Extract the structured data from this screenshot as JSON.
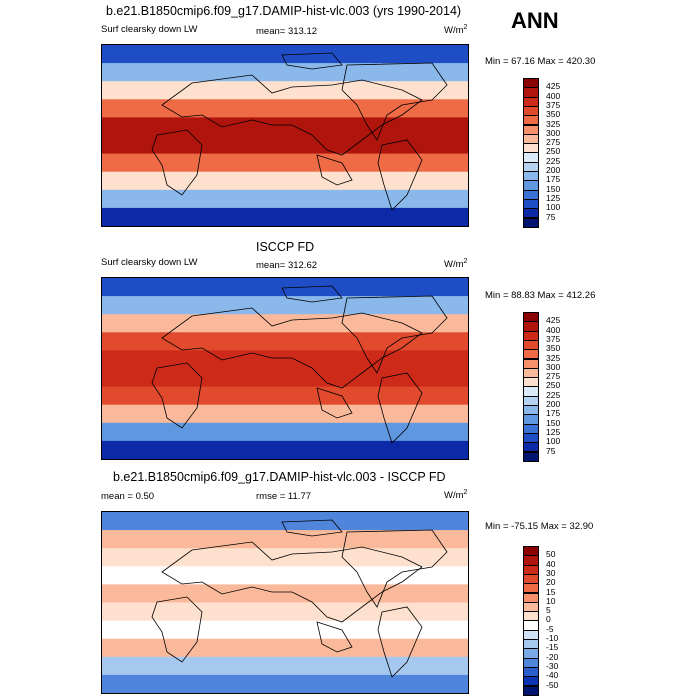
{
  "main_title": "b.e21.B1850cmip6.f09_g17.DAMIP-hist-vlc.003 (yrs 1990-2014)",
  "season": "ANN",
  "panels": [
    {
      "title": "",
      "field": "Surf clearsky down LW",
      "stat": "mean= 313.12",
      "units": "W/m",
      "units_sup": "2",
      "minmax": "Min =  67.16 Max = 420.30",
      "levels": [
        "425",
        "400",
        "375",
        "350",
        "325",
        "300",
        "275",
        "250",
        "225",
        "200",
        "175",
        "150",
        "125",
        "100",
        "75"
      ],
      "colors": [
        "#8b0000",
        "#b0150d",
        "#cd2a1a",
        "#e14a2c",
        "#ee6b45",
        "#f6916b",
        "#fab99a",
        "#fde0cd",
        "#dbeaf8",
        "#b5d3f1",
        "#8ab8ea",
        "#5f97e0",
        "#3a71d5",
        "#1f4dc6",
        "#0c2aa8",
        "#001470"
      ]
    },
    {
      "title": "ISCCP FD",
      "field": "Surf clearsky down LW",
      "stat": "mean= 312.62",
      "units": "W/m",
      "units_sup": "2",
      "minmax": "Min =  88.83 Max = 412.26",
      "levels": [
        "425",
        "400",
        "375",
        "350",
        "325",
        "300",
        "275",
        "250",
        "225",
        "200",
        "175",
        "150",
        "125",
        "100",
        "75"
      ],
      "colors": [
        "#8b0000",
        "#b0150d",
        "#cd2a1a",
        "#e14a2c",
        "#ee6b45",
        "#f6916b",
        "#fab99a",
        "#fde0cd",
        "#dbeaf8",
        "#b5d3f1",
        "#8ab8ea",
        "#5f97e0",
        "#3a71d5",
        "#1f4dc6",
        "#0c2aa8",
        "#001470"
      ]
    },
    {
      "title": "b.e21.B1850cmip6.f09_g17.DAMIP-hist-vlc.003 - ISCCP FD",
      "field": "mean =   0.50",
      "stat": "rmse =  11.77",
      "units": "W/m",
      "units_sup": "2",
      "minmax": "Min = -75.15 Max =  32.90",
      "levels": [
        "50",
        "40",
        "30",
        "20",
        "15",
        "10",
        "5",
        "0",
        "-5",
        "-10",
        "-15",
        "-20",
        "-30",
        "-40",
        "-50"
      ],
      "colors": [
        "#8b0000",
        "#b0150d",
        "#cd2a1a",
        "#e14a2c",
        "#ee6b45",
        "#f6916b",
        "#fab99a",
        "#fde0cd",
        "#ffffff",
        "#cfe2f6",
        "#a6c8ef",
        "#7aa9e6",
        "#4f86db",
        "#2a5ecd",
        "#0c34b4",
        "#001470"
      ]
    }
  ]
}
